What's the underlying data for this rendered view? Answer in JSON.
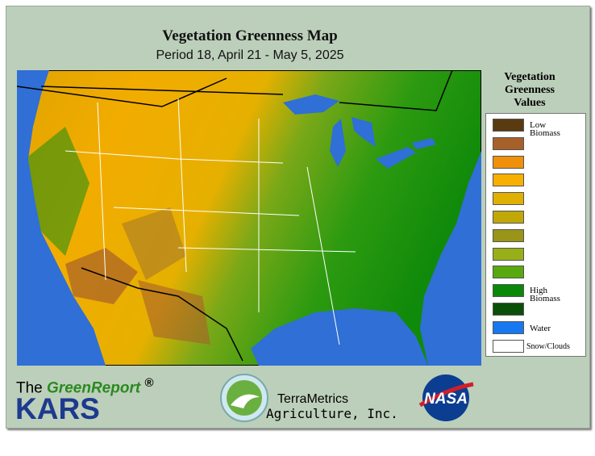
{
  "header": {
    "title": "Vegetation Greenness Map",
    "subtitle": "Period 18, April 21 - May 5, 2025"
  },
  "legend": {
    "title": [
      "Vegetation",
      "Greenness",
      "Values"
    ],
    "items": [
      {
        "color": "#5a3a10",
        "label": "Low Biomass"
      },
      {
        "color": "#a8602a"
      },
      {
        "color": "#f0900a"
      },
      {
        "color": "#f8b000"
      },
      {
        "color": "#e0b000"
      },
      {
        "color": "#c0a808"
      },
      {
        "color": "#9a9418"
      },
      {
        "color": "#98b018"
      },
      {
        "color": "#58a810"
      },
      {
        "color": "#0a880a",
        "label": "High Biomass"
      },
      {
        "color": "#0a5008"
      },
      {
        "color": "#1878f0",
        "label": "Water"
      },
      {
        "color": "#ffffff",
        "label": "Snow/Clouds"
      }
    ]
  },
  "footer": {
    "the": "The",
    "greenreport": "GreenReport",
    "registered": "®",
    "kars": "KARS",
    "terrametrics": "TerraMetrics",
    "agriculture": "Agriculture, Inc.",
    "nasa": "NASA"
  }
}
